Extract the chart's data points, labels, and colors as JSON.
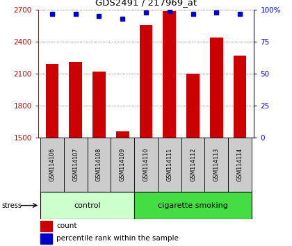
{
  "title": "GDS2491 / 217969_at",
  "samples": [
    "GSM114106",
    "GSM114107",
    "GSM114108",
    "GSM114109",
    "GSM114110",
    "GSM114111",
    "GSM114112",
    "GSM114113",
    "GSM114114"
  ],
  "counts": [
    2190,
    2215,
    2120,
    1560,
    2560,
    2690,
    2100,
    2440,
    2270
  ],
  "percentiles": [
    97,
    97,
    95,
    93,
    98,
    99,
    97,
    98,
    97
  ],
  "ylim_left": [
    1500,
    2700
  ],
  "yticks_left": [
    1500,
    1800,
    2100,
    2400,
    2700
  ],
  "ylim_right": [
    0,
    100
  ],
  "yticks_right": [
    0,
    25,
    50,
    75,
    100
  ],
  "bar_color": "#cc0000",
  "dot_color": "#0000cc",
  "control_label": "control",
  "smoking_label": "cigarette smoking",
  "stress_label": "stress",
  "legend_count": "count",
  "legend_percentile": "percentile rank within the sample",
  "control_color": "#ccffcc",
  "smoking_color": "#44dd44",
  "bar_width": 0.55,
  "n_control": 4,
  "n_smoking": 5
}
